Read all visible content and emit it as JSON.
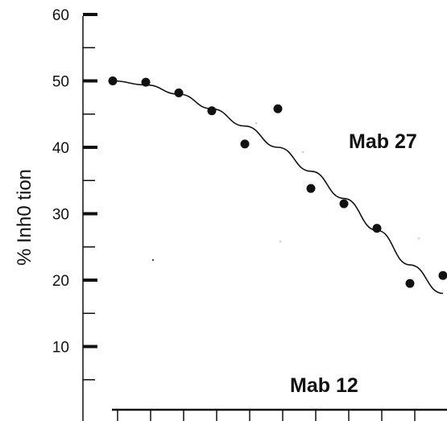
{
  "chart_data": {
    "type": "scatter",
    "xlabel": "",
    "ylabel": "% Inh0 tion",
    "ylim": [
      0,
      60
    ],
    "yticks_major": [
      60,
      50,
      40,
      30,
      20,
      10
    ],
    "yticks_minor": [
      55,
      45,
      35,
      25,
      15,
      5
    ],
    "xticks_count": 11,
    "grid": false,
    "annotations": [
      {
        "id": "mab27",
        "text": "Mab 27"
      },
      {
        "id": "mab12",
        "text": "Mab 12"
      }
    ],
    "series": [
      {
        "points": [
          {
            "x": 1,
            "y": 50
          },
          {
            "x": 2,
            "y": 49.8
          },
          {
            "x": 3,
            "y": 48.2
          },
          {
            "x": 4,
            "y": 45.5
          },
          {
            "x": 5,
            "y": 40.5
          },
          {
            "x": 6,
            "y": 45.8
          },
          {
            "x": 7,
            "y": 33.8
          },
          {
            "x": 8,
            "y": 31.5
          },
          {
            "x": 9,
            "y": 27.8
          },
          {
            "x": 10,
            "y": 19.5
          },
          {
            "x": 11,
            "y": 20.7
          }
        ],
        "fit": [
          {
            "x": 1,
            "y": 50
          },
          {
            "x": 2,
            "y": 49.4
          },
          {
            "x": 3,
            "y": 48
          },
          {
            "x": 4,
            "y": 45.8
          },
          {
            "x": 5,
            "y": 43.2
          },
          {
            "x": 6,
            "y": 40
          },
          {
            "x": 7,
            "y": 36.4
          },
          {
            "x": 8,
            "y": 32.3
          },
          {
            "x": 9,
            "y": 27.5
          },
          {
            "x": 10,
            "y": 22.3
          },
          {
            "x": 11,
            "y": 18
          }
        ]
      }
    ]
  }
}
